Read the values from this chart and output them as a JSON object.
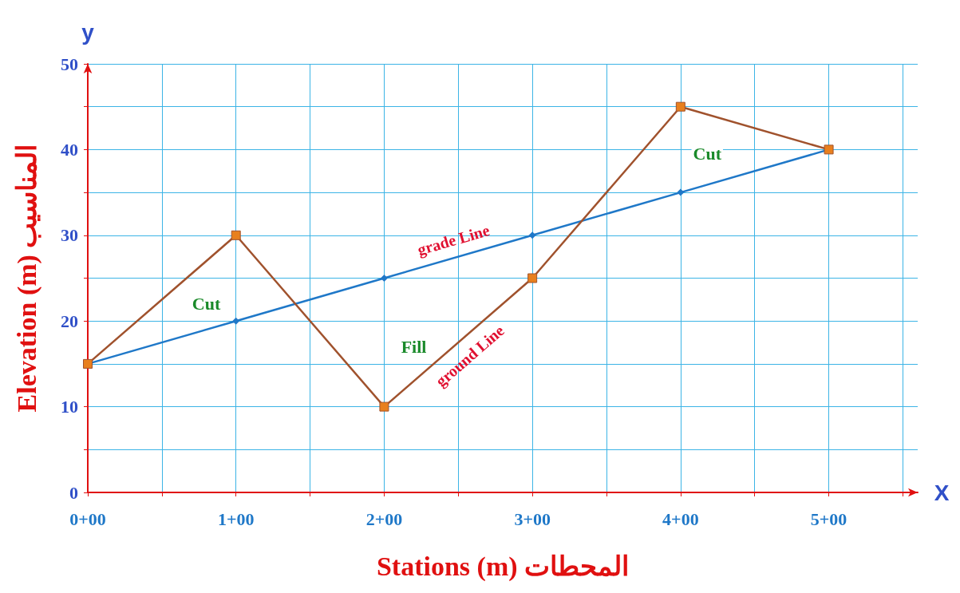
{
  "chart_data": {
    "type": "line",
    "xlabel": "Stations (m) المحطات",
    "ylabel": "Elevation (m) المناسيب",
    "categories": [
      "0+00",
      "1+00",
      "2+00",
      "3+00",
      "4+00",
      "5+00"
    ],
    "ylim": [
      0,
      50
    ],
    "yticks": [
      0,
      {
        "value": 5,
        "label": null
      },
      10,
      {
        "value": 15,
        "label": null
      },
      20,
      {
        "value": 25,
        "label": null
      },
      30,
      {
        "value": 35,
        "label": null
      },
      40,
      {
        "value": 45,
        "label": null
      },
      50
    ],
    "grid": true,
    "series": [
      {
        "name": "grade Line",
        "color": "#1f78c8",
        "marker": "diamond",
        "values": [
          15,
          20,
          25,
          30,
          35,
          40
        ]
      },
      {
        "name": "ground Line",
        "color": "#a0522d",
        "marker": "square",
        "colors": [
          "#e8801e",
          "#e8801e",
          "#e8801e",
          "#e8801e",
          "#e8801e",
          "#e8801e"
        ],
        "values": [
          15,
          30,
          10,
          25,
          45,
          40
        ]
      }
    ],
    "annotations": [
      "Cut",
      "Fill",
      "Cut",
      "y",
      "X"
    ]
  }
}
